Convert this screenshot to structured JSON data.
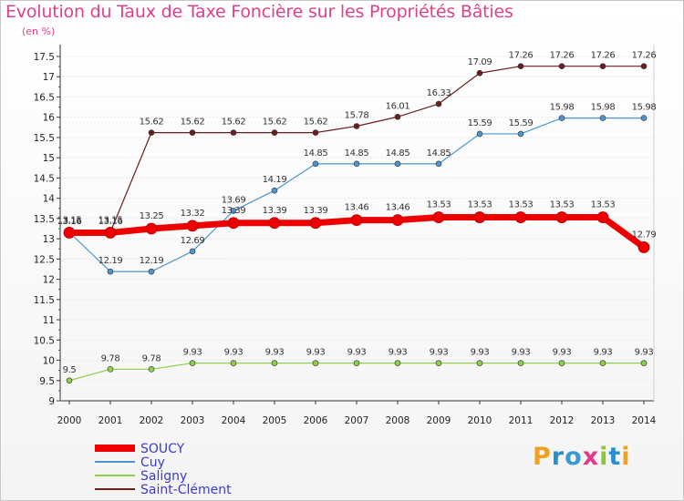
{
  "chart_data": {
    "type": "line",
    "title": "Evolution du Taux de Taxe Foncière sur les Propriétés Bâties",
    "ylabel": "(en %)",
    "xlabel": "",
    "ylim": [
      9,
      17.5
    ],
    "yticks": [
      "9",
      "9.5",
      "10",
      "10.5",
      "11",
      "11.5",
      "12",
      "12.5",
      "13",
      "13.5",
      "14",
      "14.5",
      "15",
      "15.5",
      "16",
      "16.5",
      "17",
      "17.5"
    ],
    "categories": [
      "2000",
      "2001",
      "2002",
      "2003",
      "2004",
      "2005",
      "2006",
      "2007",
      "2008",
      "2009",
      "2010",
      "2011",
      "2012",
      "2013",
      "2014"
    ],
    "series": [
      {
        "name": "SOUCY",
        "color": "#ee0000",
        "values": [
          13.15,
          13.15,
          13.25,
          13.32,
          13.39,
          13.39,
          13.39,
          13.46,
          13.46,
          13.53,
          13.53,
          13.53,
          13.53,
          13.53,
          12.79
        ],
        "labels": [
          "13.15",
          "13.15",
          "13.25",
          "13.32",
          "13.39",
          "13.39",
          "13.39",
          "13.46",
          "13.46",
          "13.53",
          "13.53",
          "13.53",
          "13.53",
          "13.53",
          "12.79"
        ]
      },
      {
        "name": "Cuy",
        "color": "#4f94cd",
        "values": [
          13.16,
          12.19,
          12.19,
          12.69,
          13.69,
          14.19,
          14.85,
          14.85,
          14.85,
          14.85,
          15.59,
          15.59,
          15.98,
          15.98,
          15.98
        ],
        "labels": [
          "13.16",
          "12.19",
          "12.19",
          "12.69",
          "13.69",
          "14.19",
          "14.85",
          "14.85",
          "14.85",
          "14.85",
          "15.59",
          "15.59",
          "15.98",
          "15.98",
          "15.98"
        ]
      },
      {
        "name": "Saligny",
        "color": "#8fd04a",
        "values": [
          9.5,
          9.78,
          9.78,
          9.93,
          9.93,
          9.93,
          9.93,
          9.93,
          9.93,
          9.93,
          9.93,
          9.93,
          9.93,
          9.93,
          9.93
        ],
        "labels": [
          "9.5",
          "9.78",
          "9.78",
          "9.93",
          "9.93",
          "9.93",
          "9.93",
          "9.93",
          "9.93",
          "9.93",
          "9.93",
          "9.93",
          "9.93",
          "9.93",
          "9.93"
        ]
      },
      {
        "name": "Saint-Clément",
        "color": "#6b1e1e",
        "values": [
          13.16,
          13.16,
          15.62,
          15.62,
          15.62,
          15.62,
          15.62,
          15.78,
          16.01,
          16.33,
          17.09,
          17.26,
          17.26,
          17.26,
          17.26
        ],
        "labels": [
          "13.16",
          "13.16",
          "15.62",
          "15.62",
          "15.62",
          "15.62",
          "15.62",
          "15.78",
          "16.01",
          "16.33",
          "17.09",
          "17.26",
          "17.26",
          "17.26",
          "17.26"
        ]
      }
    ],
    "legend_position": "bottom-left"
  },
  "branding": {
    "logo_text": "Proxiti"
  }
}
